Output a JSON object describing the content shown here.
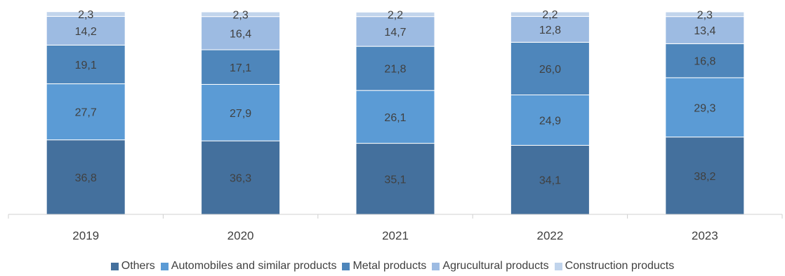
{
  "chart_data": {
    "type": "bar",
    "stacked": true,
    "categories": [
      "2019",
      "2020",
      "2021",
      "2022",
      "2023"
    ],
    "series": [
      {
        "name": "Others",
        "color": "#44709d",
        "values": [
          36.8,
          36.3,
          35.1,
          34.1,
          38.2
        ]
      },
      {
        "name": "Automobiles and similar products",
        "color": "#5b9bd5",
        "values": [
          27.7,
          27.9,
          26.1,
          24.9,
          29.3
        ]
      },
      {
        "name": "Metal products",
        "color": "#4e86bb",
        "values": [
          19.1,
          17.1,
          21.8,
          26.0,
          16.8
        ]
      },
      {
        "name": "Agrucultural products",
        "color": "#9dbbe2",
        "values": [
          14.2,
          16.4,
          14.7,
          12.8,
          13.4
        ]
      },
      {
        "name": "Construction products",
        "color": "#c1d4ec",
        "values": [
          2.3,
          2.3,
          2.2,
          2.2,
          2.3
        ]
      }
    ],
    "data_labels": [
      [
        "36,8",
        "36,3",
        "35,1",
        "34,1",
        "38,2"
      ],
      [
        "27,7",
        "27,9",
        "26,1",
        "24,9",
        "29,3"
      ],
      [
        "19,1",
        "17,1",
        "21,8",
        "26,0",
        "16,8"
      ],
      [
        "14,2",
        "16,4",
        "14,7",
        "12,8",
        "13,4"
      ],
      [
        "2,3",
        "2,3",
        "2,2",
        "2,2",
        "2,3"
      ]
    ],
    "ylim": [
      0,
      100
    ],
    "grid": false,
    "legend_position": "bottom"
  }
}
